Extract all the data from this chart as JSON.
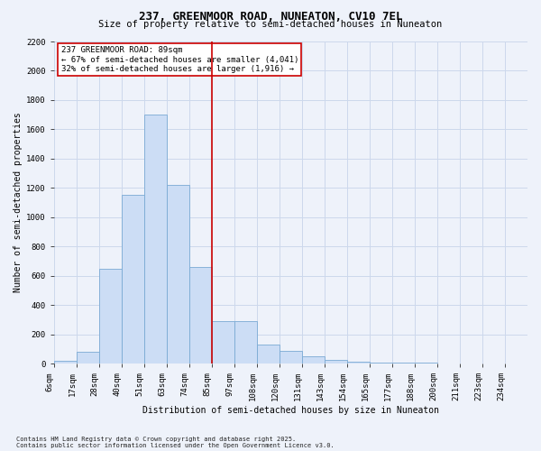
{
  "title": "237, GREENMOOR ROAD, NUNEATON, CV10 7EL",
  "subtitle": "Size of property relative to semi-detached houses in Nuneaton",
  "xlabel": "Distribution of semi-detached houses by size in Nuneaton",
  "ylabel": "Number of semi-detached properties",
  "bar_labels": [
    "6sqm",
    "17sqm",
    "28sqm",
    "40sqm",
    "51sqm",
    "63sqm",
    "74sqm",
    "85sqm",
    "97sqm",
    "108sqm",
    "120sqm",
    "131sqm",
    "143sqm",
    "154sqm",
    "165sqm",
    "177sqm",
    "188sqm",
    "200sqm",
    "211sqm",
    "223sqm",
    "234sqm"
  ],
  "bar_values": [
    20,
    80,
    650,
    1150,
    1700,
    1220,
    660,
    290,
    290,
    130,
    90,
    50,
    25,
    15,
    5,
    5,
    5,
    2,
    2,
    2,
    0
  ],
  "property_label": "237 GREENMOOR ROAD: 89sqm",
  "pct_smaller": "67%",
  "n_smaller": "4,041",
  "pct_larger": "32%",
  "n_larger": "1,916",
  "vline_label_index": 7,
  "bar_color": "#ccddf5",
  "bar_edgecolor": "#7aaad4",
  "vline_color": "#cc0000",
  "grid_color": "#ccd8ec",
  "background_color": "#eef2fa",
  "annotation_box_color": "#ffffff",
  "annotation_box_edgecolor": "#cc0000",
  "footnote1": "Contains HM Land Registry data © Crown copyright and database right 2025.",
  "footnote2": "Contains public sector information licensed under the Open Government Licence v3.0.",
  "ylim": [
    0,
    2200
  ],
  "yticks": [
    0,
    200,
    400,
    600,
    800,
    1000,
    1200,
    1400,
    1600,
    1800,
    2000,
    2200
  ],
  "title_fontsize": 9,
  "subtitle_fontsize": 7.5,
  "tick_fontsize": 6.5,
  "ylabel_fontsize": 7,
  "xlabel_fontsize": 7,
  "annot_fontsize": 6.5,
  "footnote_fontsize": 5
}
